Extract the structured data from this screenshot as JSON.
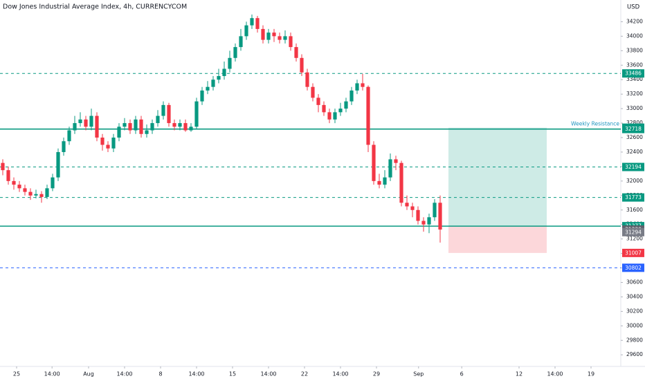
{
  "chart_data": {
    "type": "candlestick",
    "title": "Dow Jones Industrial Average Index, 4h, CURRENCYCOM",
    "currency": "USD",
    "xlim": [
      0,
      112
    ],
    "xticks": [
      {
        "value": 3,
        "label": "25"
      },
      {
        "value": 9.4,
        "label": "14:00"
      },
      {
        "value": 16,
        "label": "Aug"
      },
      {
        "value": 22.5,
        "label": "14:00"
      },
      {
        "value": 29,
        "label": "8"
      },
      {
        "value": 35.5,
        "label": "14:00"
      },
      {
        "value": 42,
        "label": "15"
      },
      {
        "value": 48.5,
        "label": "14:00"
      },
      {
        "value": 55,
        "label": "22"
      },
      {
        "value": 61.5,
        "label": "14:00"
      },
      {
        "value": 68,
        "label": "29"
      },
      {
        "value": 75.6,
        "label": "Sep"
      },
      {
        "value": 83.4,
        "label": "6"
      },
      {
        "value": 93.75,
        "label": "12"
      },
      {
        "value": 100.25,
        "label": "14:00"
      },
      {
        "value": 106.75,
        "label": "19"
      }
    ],
    "ylim": [
      29440,
      34500
    ],
    "yticks": [
      29600,
      29800,
      30000,
      30200,
      30400,
      30600,
      30800,
      31000,
      31200,
      31400,
      31600,
      31800,
      32000,
      32200,
      32400,
      32600,
      32800,
      33000,
      33200,
      33400,
      33600,
      33800,
      34000,
      34200
    ],
    "up_color": "#089981",
    "down_color": "#f23645",
    "open": [
      32250,
      32150,
      32000,
      31950,
      31900,
      31850,
      31800,
      31820,
      31780,
      31900,
      32050,
      32400,
      32550,
      32700,
      32800,
      32850,
      32750,
      32900,
      32600,
      32500,
      32450,
      32600,
      32750,
      32800,
      32700,
      32850,
      32650,
      32700,
      32800,
      32900,
      33050,
      32800,
      32750,
      32800,
      32700,
      32750,
      33100,
      33250,
      33300,
      33400,
      33450,
      33550,
      33700,
      33850,
      34000,
      34150,
      34250,
      34100,
      33950,
      34050,
      34000,
      33950,
      34000,
      33850,
      33700,
      33500,
      33300,
      33150,
      33050,
      32950,
      32850,
      32950,
      33000,
      33100,
      33250,
      33350,
      33300,
      32500,
      32000,
      31950,
      32050,
      32300,
      32250,
      31700,
      31650,
      31600,
      31450,
      31400,
      31500,
      31700
    ],
    "high": [
      32300,
      32200,
      32050,
      32000,
      31950,
      31900,
      31880,
      31860,
      31950,
      32100,
      32450,
      32600,
      32750,
      32900,
      32950,
      32900,
      33000,
      32950,
      32650,
      32550,
      32650,
      32800,
      32870,
      32850,
      32900,
      32900,
      32780,
      32850,
      32980,
      33100,
      33080,
      32850,
      32850,
      32850,
      32800,
      33150,
      33300,
      33380,
      33450,
      33550,
      33650,
      33800,
      33900,
      34100,
      34200,
      34300,
      34280,
      34150,
      34100,
      34100,
      34050,
      34080,
      34050,
      33900,
      33750,
      33550,
      33350,
      33200,
      33100,
      33000,
      33000,
      33080,
      33150,
      33300,
      33400,
      33480,
      33320,
      32550,
      32100,
      32150,
      32380,
      32350,
      32280,
      31800,
      31700,
      31650,
      31500,
      31550,
      31750,
      31800
    ],
    "low": [
      32080,
      31950,
      31880,
      31850,
      31800,
      31740,
      31760,
      31700,
      31750,
      31860,
      32000,
      32350,
      32500,
      32650,
      32750,
      32700,
      32700,
      32550,
      32420,
      32400,
      32400,
      32550,
      32700,
      32650,
      32650,
      32600,
      32600,
      32650,
      32750,
      32850,
      32750,
      32700,
      32700,
      32680,
      32680,
      32720,
      33050,
      33200,
      33250,
      33350,
      33400,
      33500,
      33650,
      33800,
      33950,
      34100,
      34050,
      33900,
      33900,
      33920,
      33900,
      33900,
      33800,
      33650,
      33450,
      33250,
      33100,
      32950,
      32900,
      32800,
      32800,
      32900,
      32950,
      33050,
      33200,
      33250,
      32400,
      31950,
      31900,
      31900,
      32000,
      32150,
      31650,
      31600,
      31500,
      31400,
      31300,
      31280,
      31450,
      31150
    ],
    "close": [
      32150,
      32000,
      31950,
      31900,
      31850,
      31800,
      31820,
      31780,
      31900,
      32050,
      32400,
      32550,
      32700,
      32800,
      32850,
      32750,
      32900,
      32600,
      32500,
      32450,
      32600,
      32750,
      32800,
      32700,
      32850,
      32650,
      32700,
      32800,
      32900,
      33050,
      32800,
      32750,
      32800,
      32700,
      32750,
      33100,
      33250,
      33300,
      33400,
      33450,
      33550,
      33700,
      33850,
      34000,
      34150,
      34250,
      34100,
      33950,
      34050,
      34000,
      33950,
      34000,
      33850,
      33700,
      33500,
      33300,
      33150,
      33050,
      32950,
      32850,
      32950,
      33000,
      33100,
      33250,
      33350,
      33300,
      32500,
      32000,
      31950,
      32050,
      32300,
      32250,
      31700,
      31650,
      31600,
      31450,
      31400,
      31500,
      31700,
      31330
    ],
    "levels": [
      {
        "value": 33486,
        "color": "#089981",
        "line": "dashed"
      },
      {
        "value": 32737,
        "color": "#089981",
        "line": "none"
      },
      {
        "value": 32718,
        "color": "#089981",
        "line": "solid",
        "label": "Weekly Resistance"
      },
      {
        "value": 32194,
        "color": "#089981",
        "line": "dashed"
      },
      {
        "value": 31773,
        "color": "#089981",
        "line": "dashed"
      },
      {
        "value": 31377,
        "color": "#089981",
        "line": "solid"
      },
      {
        "value": 31330,
        "color": "#5d606b",
        "line": "none"
      },
      {
        "value": 31294,
        "color": "#787b86",
        "line": "none"
      },
      {
        "value": 31007,
        "color": "#f23645",
        "line": "none"
      },
      {
        "value": 30802,
        "color": "#2962ff",
        "line": "dashed"
      }
    ],
    "position": {
      "x_from": 81,
      "x_to": 98.75,
      "target": 32737,
      "entry": 31377,
      "stop": 31007
    }
  }
}
